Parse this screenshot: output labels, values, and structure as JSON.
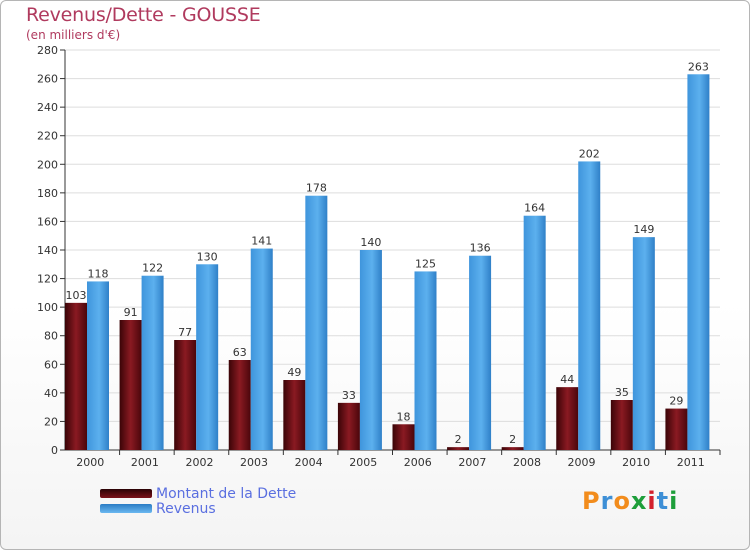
{
  "title": "Revenus/Dette - GOUSSE",
  "subtitle": "(en milliers d'€)",
  "logo": "Proxiti",
  "colors": {
    "dette": "#6e0a10",
    "revenus": "#4aa2e6",
    "grid": "#dddddd",
    "axis": "#333333",
    "title": "#b03a5e",
    "legend_text": "#5a6fe0"
  },
  "chart_data": {
    "type": "bar",
    "title": "Revenus/Dette - GOUSSE",
    "ylabel": "(en milliers d'€)",
    "xlabel": "",
    "categories": [
      "2000",
      "2001",
      "2002",
      "2003",
      "2004",
      "2005",
      "2006",
      "2007",
      "2008",
      "2009",
      "2010",
      "2011"
    ],
    "series": [
      {
        "name": "Montant de la Dette",
        "color": "#6e0a10",
        "values": [
          103,
          91,
          77,
          63,
          49,
          33,
          18,
          2,
          2,
          44,
          35,
          29
        ]
      },
      {
        "name": "Revenus",
        "color": "#4aa2e6",
        "values": [
          118,
          122,
          130,
          141,
          178,
          140,
          125,
          136,
          164,
          202,
          149,
          263
        ]
      }
    ],
    "ylim": [
      0,
      280
    ],
    "yticks": [
      0,
      20,
      40,
      60,
      80,
      100,
      120,
      140,
      160,
      180,
      200,
      220,
      240,
      260,
      280
    ],
    "grid": true,
    "legend_position": "bottom-left"
  }
}
